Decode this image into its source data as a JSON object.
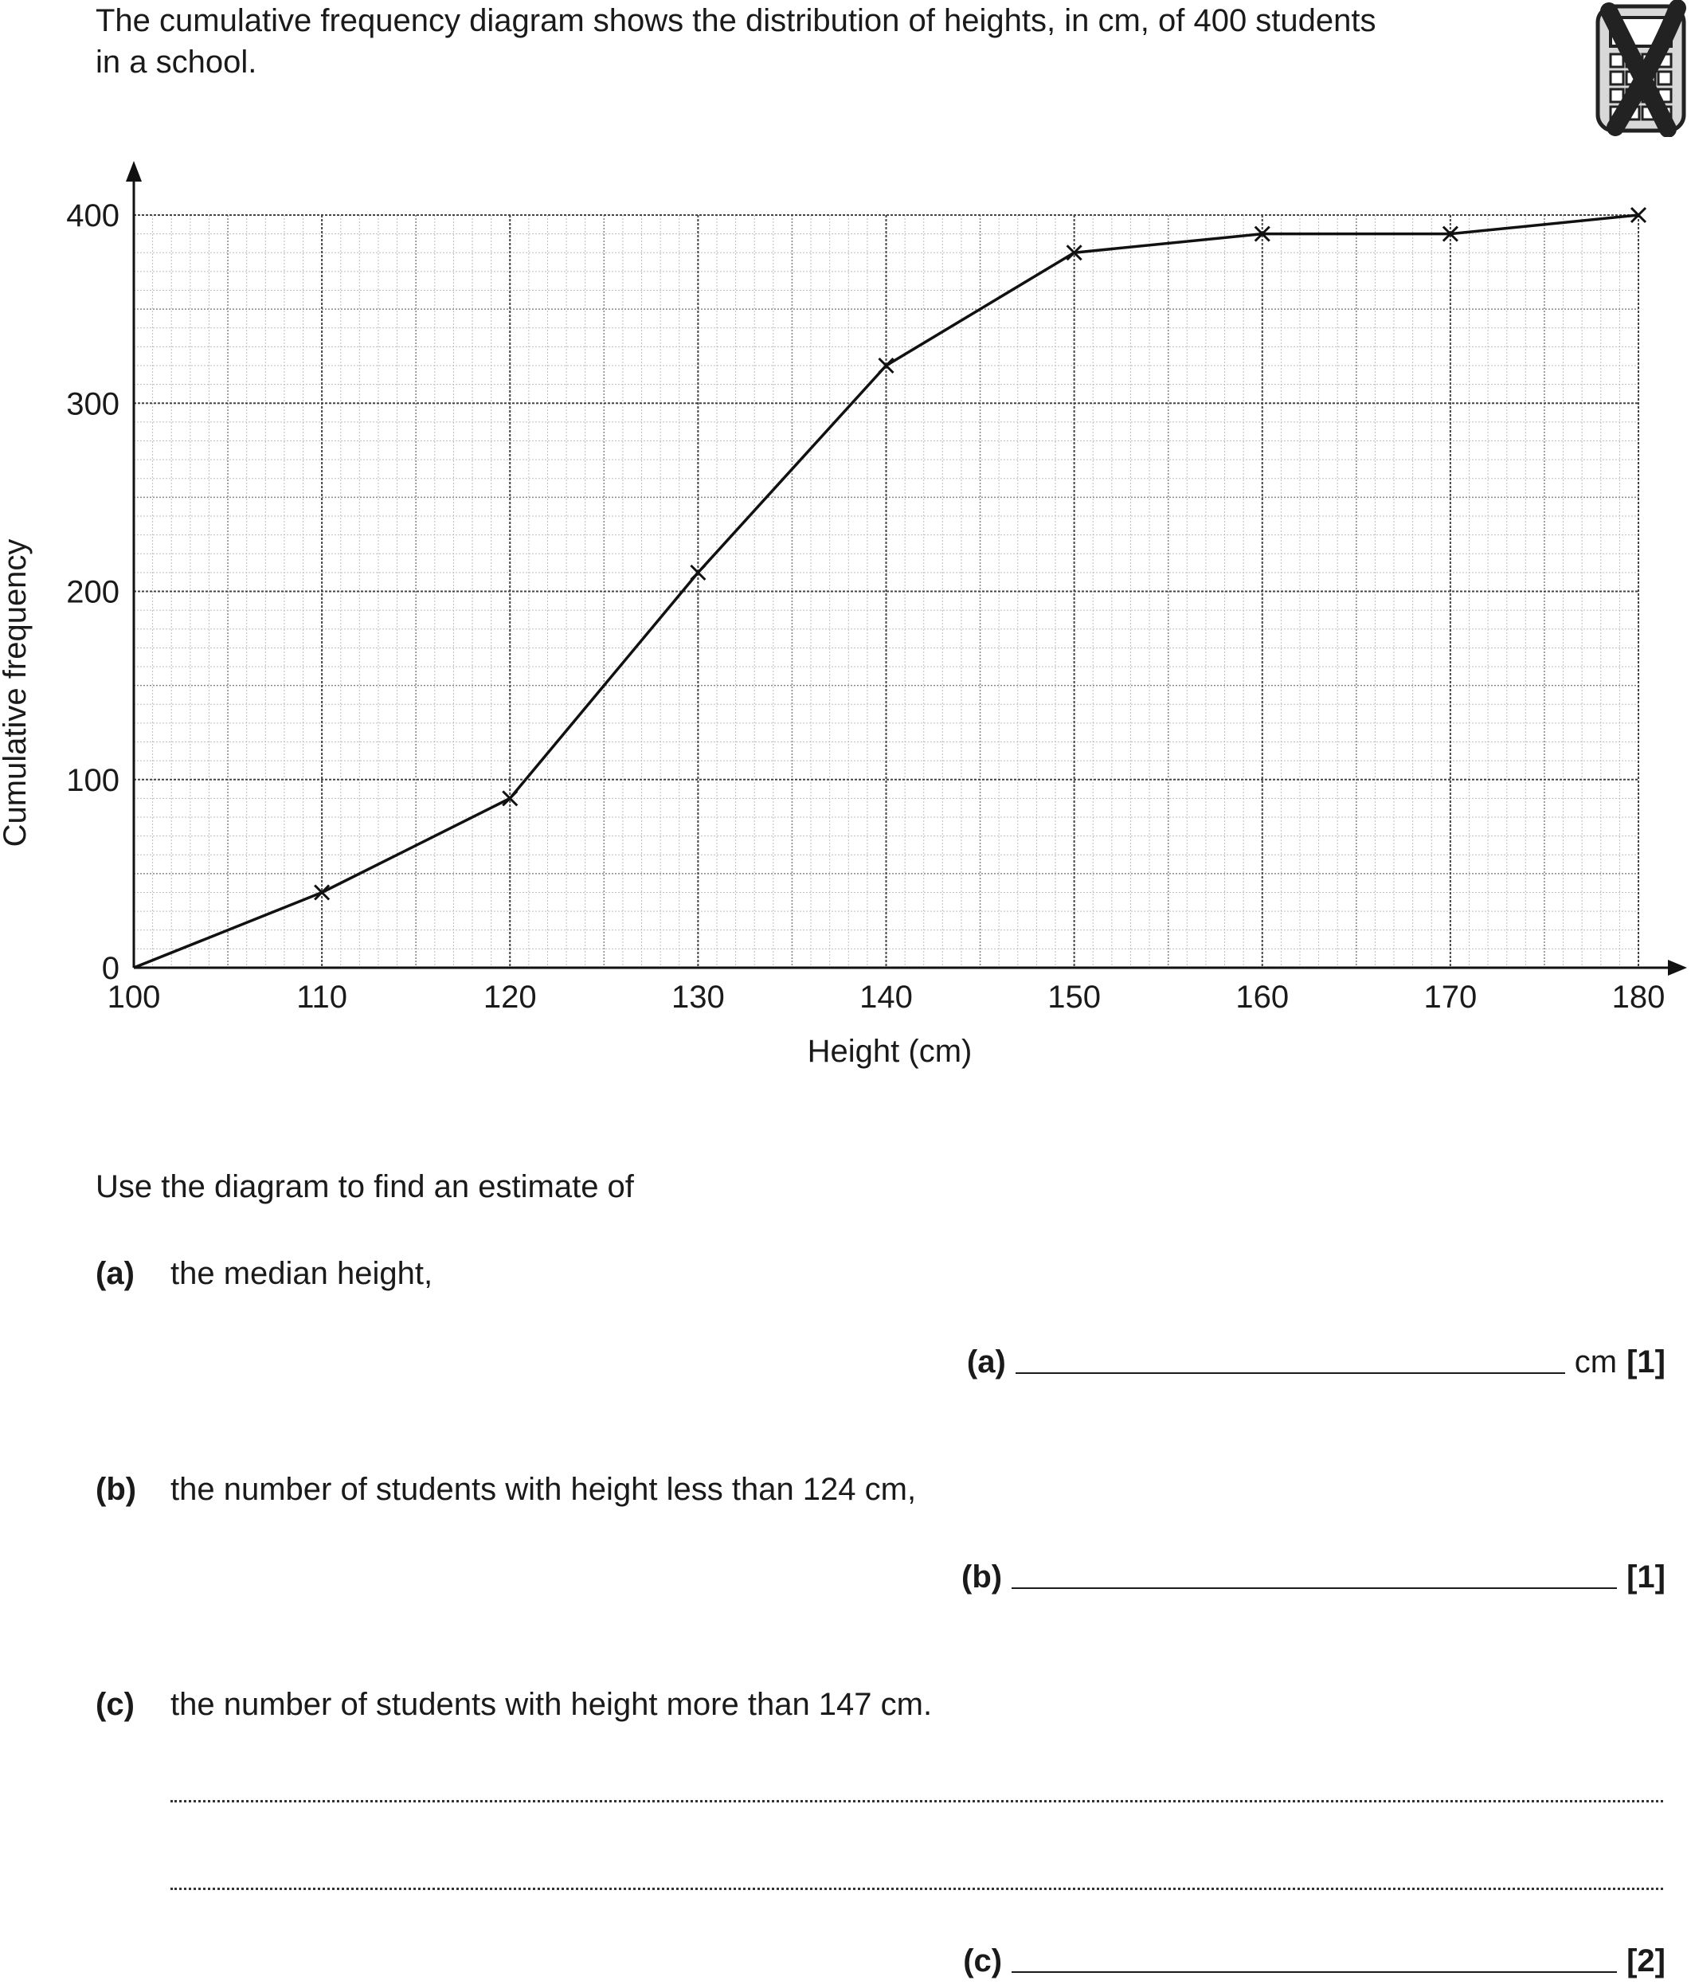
{
  "intro": {
    "line1": "The cumulative frequency diagram shows the distribution of heights, in cm, of 400 students",
    "line2": "in a school."
  },
  "icons": {
    "calculator": "no-calculator-icon"
  },
  "chart_data": {
    "type": "line",
    "x": [
      100,
      110,
      120,
      130,
      140,
      150,
      160,
      170,
      180
    ],
    "y": [
      0,
      40,
      90,
      210,
      320,
      380,
      390,
      390,
      400
    ],
    "markers": "cross",
    "xlabel": "Height (cm)",
    "ylabel": "Cumulative frequency",
    "xlim": [
      100,
      180
    ],
    "ylim": [
      0,
      400
    ],
    "x_ticks": [
      "100",
      "110",
      "120",
      "130",
      "140",
      "150",
      "160",
      "170",
      "180"
    ],
    "y_ticks": [
      "0",
      "100",
      "200",
      "300",
      "400"
    ],
    "grid": true
  },
  "instruction": "Use the diagram to find an estimate of",
  "questions": [
    {
      "label": "(a)",
      "text": "the median height,",
      "answer_label": "(a)",
      "unit": "cm",
      "marks": "[1]"
    },
    {
      "label": "(b)",
      "text": "the number of students with height less than 124 cm,",
      "answer_label": "(b)",
      "unit": "",
      "marks": "[1]"
    },
    {
      "label": "(c)",
      "text": "the number of students with height more than 147 cm.",
      "answer_label": "(c)",
      "unit": "",
      "marks": "[2]"
    }
  ]
}
